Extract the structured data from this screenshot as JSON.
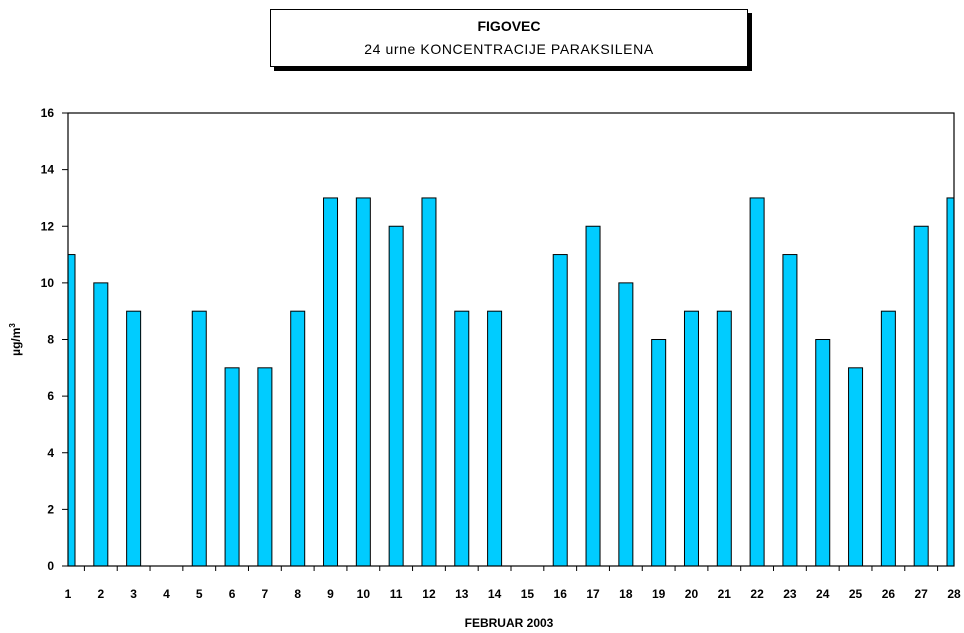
{
  "chart_data": {
    "type": "bar",
    "title": "FIGOVEC",
    "subtitle": "24 urne KONCENTRACIJE PARAKSILENA",
    "xlabel": "FEBRUAR  2003",
    "ylabel": "µg/m",
    "ylabel_sup": "3",
    "ylim": [
      0,
      16
    ],
    "yticks": [
      "0",
      "2",
      "4",
      "6",
      "8",
      "10",
      "12",
      "14",
      "16"
    ],
    "categories": [
      "1",
      "2",
      "3",
      "4",
      "5",
      "6",
      "7",
      "8",
      "9",
      "10",
      "11",
      "12",
      "13",
      "14",
      "15",
      "16",
      "17",
      "18",
      "19",
      "20",
      "21",
      "22",
      "23",
      "24",
      "25",
      "26",
      "27",
      "28"
    ],
    "values": [
      11,
      10,
      9,
      null,
      9,
      7,
      7,
      9,
      13,
      13,
      12,
      13,
      9,
      9,
      null,
      11,
      12,
      10,
      8,
      9,
      9,
      13,
      11,
      8,
      7,
      9,
      12,
      13
    ],
    "bar_color": "#00ccff",
    "grid": false,
    "legend": "none"
  }
}
